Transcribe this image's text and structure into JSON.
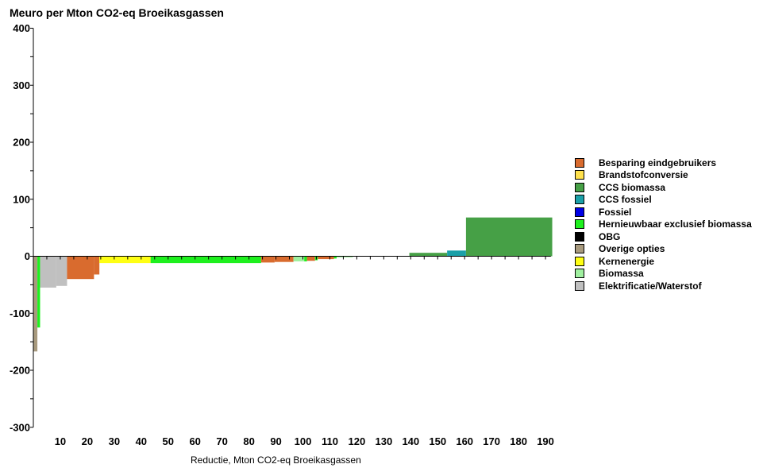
{
  "chart_data": {
    "type": "bar",
    "title": "Meuro per Mton CO2-eq Broeikasgassen",
    "xlabel": "Reductie, Mton CO2-eq Broeikasgassen",
    "ylabel": "",
    "xlim": [
      0,
      190
    ],
    "ylim": [
      -300,
      400
    ],
    "xticks": [
      10,
      20,
      30,
      40,
      50,
      60,
      70,
      80,
      90,
      100,
      110,
      120,
      130,
      140,
      150,
      160,
      170,
      180,
      190
    ],
    "yticks": [
      -300,
      -200,
      -100,
      0,
      100,
      200,
      300,
      400
    ],
    "legend_position": "right",
    "grid": false,
    "series": [
      {
        "name": "Besparing eindgebruikers",
        "color": "#D96B2E"
      },
      {
        "name": "Brandstofconversie",
        "color": "#FFE14D"
      },
      {
        "name": "CCS biomassa",
        "color": "#46A046"
      },
      {
        "name": "CCS fossiel",
        "color": "#1AA0A8"
      },
      {
        "name": "Fossiel",
        "color": "#0000E6"
      },
      {
        "name": "Hernieuwbaar exclusief biomassa",
        "color": "#1EF01E"
      },
      {
        "name": "OBG",
        "color": "#000000"
      },
      {
        "name": "Overige opties",
        "color": "#A89A7E"
      },
      {
        "name": "Kernenergie",
        "color": "#FFFF14"
      },
      {
        "name": "Biomassa",
        "color": "#A0F0A0"
      },
      {
        "name": "Elektrificatie/Waterstof",
        "color": "#C0C0C0"
      }
    ],
    "bars": [
      {
        "series": "Overige opties",
        "x0": 0,
        "x1": 1.5,
        "value": -167
      },
      {
        "series": "Hernieuwbaar exclusief biomassa",
        "x0": 1.5,
        "x1": 2.5,
        "value": -125
      },
      {
        "series": "Elektrificatie/Waterstof",
        "x0": 2.5,
        "x1": 8.5,
        "value": -55
      },
      {
        "series": "Elektrificatie/Waterstof",
        "x0": 8.5,
        "x1": 12.5,
        "value": -52
      },
      {
        "series": "Besparing eindgebruikers",
        "x0": 12.5,
        "x1": 22.5,
        "value": -40
      },
      {
        "series": "Besparing eindgebruikers",
        "x0": 22.5,
        "x1": 24.5,
        "value": -32
      },
      {
        "series": "Kernenergie",
        "x0": 24.5,
        "x1": 43.5,
        "value": -12
      },
      {
        "series": "Hernieuwbaar exclusief biomassa",
        "x0": 43.5,
        "x1": 84.5,
        "value": -12
      },
      {
        "series": "Besparing eindgebruikers",
        "x0": 84.5,
        "x1": 89.5,
        "value": -11
      },
      {
        "series": "Besparing eindgebruikers",
        "x0": 89.5,
        "x1": 96.5,
        "value": -10
      },
      {
        "series": "Biomassa",
        "x0": 96.5,
        "x1": 100.5,
        "value": -9
      },
      {
        "series": "Hernieuwbaar exclusief biomassa",
        "x0": 100.5,
        "x1": 101.5,
        "value": -9
      },
      {
        "series": "Besparing eindgebruikers",
        "x0": 101.5,
        "x1": 104.5,
        "value": -8
      },
      {
        "series": "Hernieuwbaar exclusief biomassa",
        "x0": 104.5,
        "x1": 105.5,
        "value": -7
      },
      {
        "series": "Besparing eindgebruikers",
        "x0": 105.5,
        "x1": 111.5,
        "value": -5
      },
      {
        "series": "Hernieuwbaar exclusief biomassa",
        "x0": 111.5,
        "x1": 112.5,
        "value": -4
      },
      {
        "series": "Biomassa",
        "x0": 112.5,
        "x1": 118.5,
        "value": -2
      },
      {
        "series": "CCS biomassa",
        "x0": 139.5,
        "x1": 153.5,
        "value": 6
      },
      {
        "series": "CCS fossiel",
        "x0": 153.5,
        "x1": 160.5,
        "value": 10
      },
      {
        "series": "CCS biomassa",
        "x0": 160.5,
        "x1": 192.5,
        "value": 68
      }
    ]
  }
}
